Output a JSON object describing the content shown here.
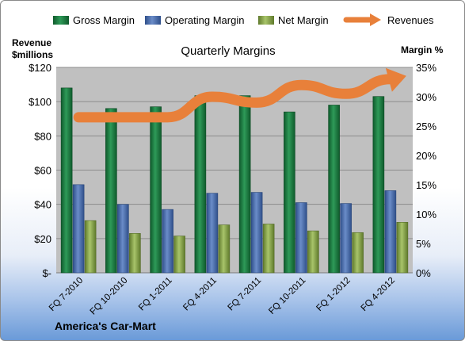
{
  "chart_data": {
    "type": "bar",
    "title": "Quarterly Margins",
    "categories": [
      "FQ 7-2010",
      "FQ 10-2010",
      "FQ 1-2011",
      "FQ 4-2011",
      "FQ 7-2011",
      "FQ 10-2011",
      "FQ 1-2012",
      "FQ 4-2012"
    ],
    "series": [
      {
        "name": "Gross Margin",
        "axis": "left",
        "values": [
          108,
          96,
          97,
          103.5,
          103.5,
          94,
          98,
          103
        ]
      },
      {
        "name": "Operating Margin",
        "axis": "left",
        "values": [
          51.5,
          40,
          37,
          46.5,
          47,
          41,
          40.5,
          48
        ]
      },
      {
        "name": "Net Margin",
        "axis": "left",
        "values": [
          30.5,
          23,
          21.5,
          28,
          28.5,
          24.5,
          23.5,
          29.5
        ]
      },
      {
        "name": "Revenues",
        "axis": "right",
        "type": "line",
        "values": [
          26.5,
          26.5,
          26.5,
          30,
          29,
          32,
          30.5,
          33
        ]
      }
    ],
    "y_left": {
      "label_lines": [
        "Revenue",
        "$millions"
      ],
      "ticks": [
        "$-",
        "$20",
        "$40",
        "$60",
        "$80",
        "$100",
        "$120"
      ],
      "min": 0,
      "max": 120
    },
    "y_right": {
      "label": "Margin %",
      "ticks": [
        "0%",
        "5%",
        "10%",
        "15%",
        "20%",
        "25%",
        "30%",
        "35%"
      ],
      "min": 0,
      "max": 35
    },
    "legend_position": "top",
    "colors": {
      "Gross Margin": "#1f7a44",
      "Operating Margin": "#4a6fad",
      "Net Margin": "#8aa84a",
      "Revenues": "#e8803a",
      "plot_bg": "#c0c0c0"
    },
    "footer": "America's Car-Mart"
  }
}
